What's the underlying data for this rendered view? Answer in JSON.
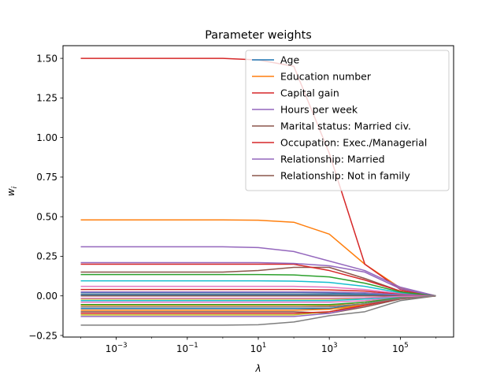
{
  "chart_data": {
    "type": "line",
    "title": "Parameter weights",
    "xlabel": "λ",
    "ylabel": "w_i",
    "xscale": "log",
    "xlim_log10": [
      -4.5,
      6.5
    ],
    "ylim": [
      -0.26,
      1.58
    ],
    "x": [
      0.0001,
      0.001,
      0.01,
      0.1,
      1,
      10,
      100,
      1000,
      10000,
      100000,
      1000000
    ],
    "xticks": [
      {
        "value": 0.001,
        "base": "10",
        "exp": "−3"
      },
      {
        "value": 0.1,
        "base": "10",
        "exp": "−1"
      },
      {
        "value": 10,
        "base": "10",
        "exp": "1"
      },
      {
        "value": 1000,
        "base": "10",
        "exp": "3"
      },
      {
        "value": 100000,
        "base": "10",
        "exp": "5"
      }
    ],
    "yticks": [
      "−0.25",
      "0.00",
      "0.25",
      "0.50",
      "0.75",
      "1.00",
      "1.25",
      "1.50"
    ],
    "ytick_values": [
      -0.25,
      0,
      0.25,
      0.5,
      0.75,
      1.0,
      1.25,
      1.5
    ],
    "legend_position": "upper-right",
    "grid": false,
    "series": [
      {
        "name": "Age",
        "color": "#1f77b4",
        "values": [
          0.02,
          0.02,
          0.02,
          0.02,
          0.02,
          0.02,
          0.02,
          0.018,
          0.012,
          0.005,
          0.0
        ]
      },
      {
        "name": "Education number",
        "color": "#ff7f0e",
        "values": [
          0.48,
          0.48,
          0.48,
          0.48,
          0.48,
          0.478,
          0.465,
          0.39,
          0.2,
          0.05,
          0.0
        ]
      },
      {
        "name": "Capital gain",
        "color": "#d62728",
        "values": [
          1.5,
          1.5,
          1.5,
          1.5,
          1.5,
          1.49,
          1.45,
          0.9,
          0.2,
          0.04,
          0.0
        ]
      },
      {
        "name": "Hours per week",
        "color": "#9467bd",
        "values": [
          0.31,
          0.31,
          0.31,
          0.31,
          0.31,
          0.305,
          0.28,
          0.22,
          0.16,
          0.055,
          0.0
        ]
      },
      {
        "name": "Marital status: Married civ.",
        "color": "#8c564b",
        "values": [
          0.15,
          0.15,
          0.15,
          0.15,
          0.15,
          0.16,
          0.18,
          0.18,
          0.11,
          0.03,
          0.0
        ]
      },
      {
        "name": "Occupation: Exec./Managerial",
        "color": "#d62728",
        "values": [
          0.2,
          0.2,
          0.2,
          0.2,
          0.2,
          0.2,
          0.2,
          0.16,
          0.1,
          0.03,
          0.0
        ]
      },
      {
        "name": "Relationship: Married",
        "color": "#9467bd",
        "values": [
          0.21,
          0.21,
          0.21,
          0.21,
          0.21,
          0.21,
          0.205,
          0.19,
          0.15,
          0.045,
          0.0
        ]
      },
      {
        "name": "Relationship: Not in family",
        "color": "#8c564b",
        "values": [
          -0.1,
          -0.1,
          -0.1,
          -0.1,
          -0.1,
          -0.1,
          -0.1,
          -0.11,
          -0.07,
          -0.02,
          0.0
        ]
      },
      {
        "name": "",
        "color": "#e377c2",
        "values": [
          0.06,
          0.06,
          0.06,
          0.06,
          0.06,
          0.06,
          0.06,
          0.055,
          0.04,
          0.015,
          0.0
        ]
      },
      {
        "name": "",
        "color": "#7f7f7f",
        "values": [
          -0.185,
          -0.185,
          -0.185,
          -0.185,
          -0.185,
          -0.182,
          -0.165,
          -0.125,
          -0.1,
          -0.03,
          0.0
        ]
      },
      {
        "name": "",
        "color": "#bcbd22",
        "values": [
          -0.12,
          -0.12,
          -0.12,
          -0.12,
          -0.12,
          -0.12,
          -0.12,
          -0.1,
          -0.05,
          -0.015,
          0.0
        ]
      },
      {
        "name": "",
        "color": "#17becf",
        "values": [
          0.095,
          0.095,
          0.095,
          0.095,
          0.095,
          0.095,
          0.093,
          0.085,
          0.06,
          0.02,
          0.0
        ]
      },
      {
        "name": "",
        "color": "#1f77b4",
        "values": [
          -0.08,
          -0.08,
          -0.08,
          -0.08,
          -0.08,
          -0.08,
          -0.08,
          -0.08,
          -0.05,
          -0.015,
          0.0
        ]
      },
      {
        "name": "",
        "color": "#ff7f0e",
        "values": [
          -0.06,
          -0.06,
          -0.06,
          -0.06,
          -0.06,
          -0.06,
          -0.06,
          -0.06,
          -0.04,
          -0.01,
          0.0
        ]
      },
      {
        "name": "",
        "color": "#2ca02c",
        "values": [
          0.135,
          0.135,
          0.135,
          0.135,
          0.135,
          0.135,
          0.132,
          0.12,
          0.08,
          0.025,
          0.0
        ]
      },
      {
        "name": "",
        "color": "#d62728",
        "values": [
          0.04,
          0.04,
          0.04,
          0.04,
          0.04,
          0.04,
          0.04,
          0.038,
          0.03,
          0.01,
          0.0
        ]
      },
      {
        "name": "",
        "color": "#9467bd",
        "values": [
          -0.13,
          -0.13,
          -0.13,
          -0.13,
          -0.13,
          -0.13,
          -0.13,
          -0.11,
          -0.06,
          -0.015,
          0.0
        ]
      },
      {
        "name": "",
        "color": "#8c564b",
        "values": [
          -0.07,
          -0.07,
          -0.07,
          -0.07,
          -0.07,
          -0.07,
          -0.07,
          -0.068,
          -0.05,
          -0.015,
          0.0
        ]
      },
      {
        "name": "",
        "color": "#e377c2",
        "values": [
          -0.04,
          -0.04,
          -0.04,
          -0.04,
          -0.04,
          -0.04,
          -0.04,
          -0.04,
          -0.03,
          -0.01,
          0.0
        ]
      },
      {
        "name": "",
        "color": "#7f7f7f",
        "values": [
          0.01,
          0.01,
          0.01,
          0.01,
          0.01,
          0.01,
          0.01,
          0.01,
          0.008,
          0.003,
          0.0
        ]
      },
      {
        "name": "",
        "color": "#bcbd22",
        "values": [
          -0.02,
          -0.02,
          -0.02,
          -0.02,
          -0.02,
          -0.02,
          -0.02,
          -0.02,
          -0.015,
          -0.005,
          0.0
        ]
      },
      {
        "name": "",
        "color": "#17becf",
        "values": [
          -0.03,
          -0.03,
          -0.03,
          -0.03,
          -0.03,
          -0.03,
          -0.03,
          -0.03,
          -0.02,
          -0.007,
          0.0
        ]
      },
      {
        "name": "",
        "color": "#1f77b4",
        "values": [
          0.005,
          0.005,
          0.005,
          0.005,
          0.005,
          0.005,
          0.005,
          0.005,
          0.004,
          0.002,
          0.0
        ]
      },
      {
        "name": "",
        "color": "#ff7f0e",
        "values": [
          -0.09,
          -0.09,
          -0.09,
          -0.09,
          -0.09,
          -0.09,
          -0.09,
          -0.085,
          -0.055,
          -0.015,
          0.0
        ]
      },
      {
        "name": "",
        "color": "#2ca02c",
        "values": [
          -0.055,
          -0.055,
          -0.055,
          -0.055,
          -0.055,
          -0.055,
          -0.055,
          -0.055,
          -0.04,
          -0.012,
          0.0
        ]
      },
      {
        "name": "",
        "color": "#d62728",
        "values": [
          -0.11,
          -0.11,
          -0.11,
          -0.11,
          -0.11,
          -0.11,
          -0.11,
          -0.1,
          -0.06,
          -0.015,
          0.0
        ]
      },
      {
        "name": "",
        "color": "#9467bd",
        "values": [
          0.025,
          0.025,
          0.025,
          0.025,
          0.025,
          0.025,
          0.025,
          0.024,
          0.02,
          0.007,
          0.0
        ]
      },
      {
        "name": "",
        "color": "#8c564b",
        "values": [
          0.0,
          0.0,
          0.0,
          0.0,
          0.0,
          0.0,
          0.0,
          0.0,
          0.0,
          0.0,
          0.0
        ]
      },
      {
        "name": "",
        "color": "#e377c2",
        "values": [
          -0.015,
          -0.015,
          -0.015,
          -0.015,
          -0.015,
          -0.015,
          -0.015,
          -0.015,
          -0.012,
          -0.004,
          0.0
        ]
      },
      {
        "name": "",
        "color": "#7f7f7f",
        "values": [
          -0.07,
          -0.07,
          -0.07,
          -0.07,
          -0.07,
          -0.07,
          -0.07,
          -0.07,
          -0.05,
          -0.015,
          0.0
        ]
      }
    ]
  }
}
